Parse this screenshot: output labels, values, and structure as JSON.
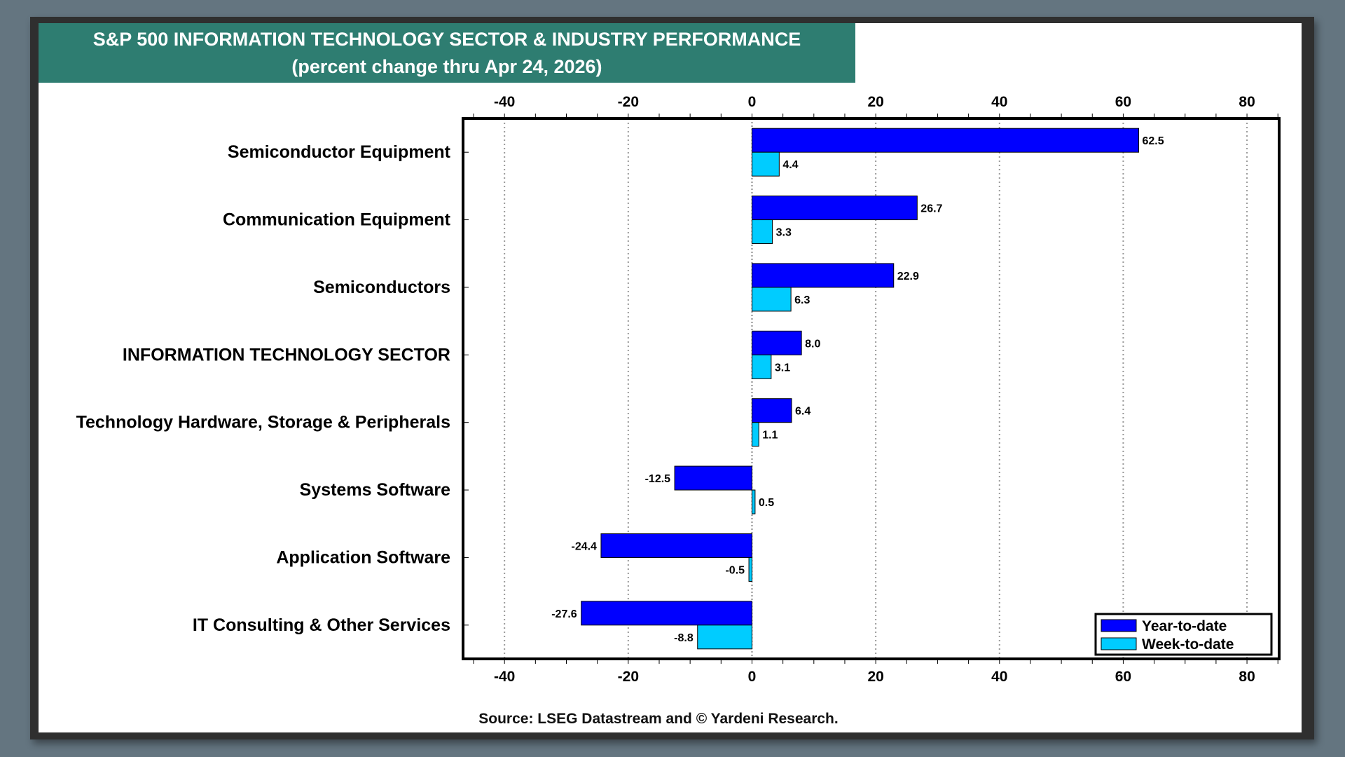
{
  "chart_data": {
    "type": "bar",
    "orientation": "horizontal",
    "title": "S&P 500 INFORMATION TECHNOLOGY SECTOR & INDUSTRY PERFORMANCE",
    "subtitle": "(percent change thru Apr 24, 2026)",
    "categories": [
      "Semiconductor Equipment",
      "Communication Equipment",
      "Semiconductors",
      "INFORMATION TECHNOLOGY SECTOR",
      "Technology Hardware, Storage & Peripherals",
      "Systems Software",
      "Application Software",
      "IT Consulting & Other Services"
    ],
    "series": [
      {
        "name": "Year-to-date",
        "color": "#0000ff",
        "values": [
          62.5,
          26.7,
          22.9,
          8.0,
          6.4,
          -12.5,
          -24.4,
          -27.6
        ]
      },
      {
        "name": "Week-to-date",
        "color": "#00ccff",
        "values": [
          4.4,
          3.3,
          6.3,
          3.1,
          1.1,
          0.5,
          -0.5,
          -8.8
        ]
      }
    ],
    "xlim": [
      -46.7,
      85.2
    ],
    "xticks": [
      -40,
      -20,
      0,
      20,
      40,
      60,
      80
    ],
    "grid": "vertical dotted",
    "legend": "bottom-right",
    "source": "Source: LSEG Datastream and © Yardeni Research."
  }
}
